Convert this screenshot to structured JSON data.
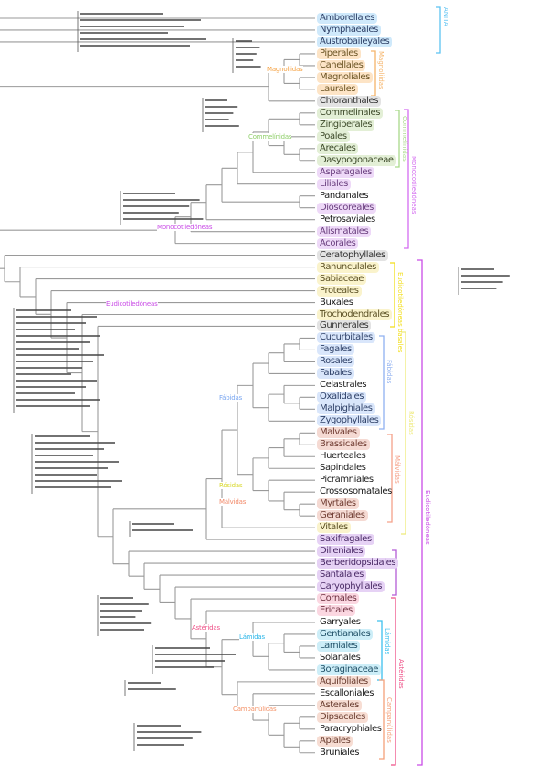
{
  "orders": [
    {
      "name": "Amborellales",
      "group": "anita"
    },
    {
      "name": "Nymphaeales",
      "group": "anita"
    },
    {
      "name": "Austrobaileyales",
      "group": "anita"
    },
    {
      "name": "Piperales",
      "group": "magno"
    },
    {
      "name": "Canellales",
      "group": "magno"
    },
    {
      "name": "Magnoliales",
      "group": "magno"
    },
    {
      "name": "Laurales",
      "group": "magno"
    },
    {
      "name": "Chloranthales",
      "group": "gray"
    },
    {
      "name": "Commelinales",
      "group": "green"
    },
    {
      "name": "Zingiberales",
      "group": "green"
    },
    {
      "name": "Poales",
      "group": "green"
    },
    {
      "name": "Arecales",
      "group": "green"
    },
    {
      "name": "Dasypogonaceae",
      "group": "green"
    },
    {
      "name": "Asparagales",
      "group": "purple"
    },
    {
      "name": "Liliales",
      "group": "purple"
    },
    {
      "name": "Pandanales",
      "group": "none"
    },
    {
      "name": "Dioscoreales",
      "group": "purple"
    },
    {
      "name": "Petrosaviales",
      "group": "none"
    },
    {
      "name": "Alismatales",
      "group": "purple"
    },
    {
      "name": "Acorales",
      "group": "purple"
    },
    {
      "name": "Ceratophyllales",
      "group": "gray"
    },
    {
      "name": "Ranunculales",
      "group": "yellow"
    },
    {
      "name": "Sabiaceae",
      "group": "yellow"
    },
    {
      "name": "Proteales",
      "group": "yellow"
    },
    {
      "name": "Buxales",
      "group": "none"
    },
    {
      "name": "Trochodendrales",
      "group": "yellow"
    },
    {
      "name": "Gunnerales",
      "group": "gray"
    },
    {
      "name": "Cucurbitales",
      "group": "blue"
    },
    {
      "name": "Fagales",
      "group": "blue"
    },
    {
      "name": "Rosales",
      "group": "blue"
    },
    {
      "name": "Fabales",
      "group": "blue"
    },
    {
      "name": "Celastrales",
      "group": "none"
    },
    {
      "name": "Oxalidales",
      "group": "blue"
    },
    {
      "name": "Malpighiales",
      "group": "blue"
    },
    {
      "name": "Zygophyllales",
      "group": "blue"
    },
    {
      "name": "Malvales",
      "group": "red"
    },
    {
      "name": "Brassicales",
      "group": "red"
    },
    {
      "name": "Huerteales",
      "group": "none"
    },
    {
      "name": "Sapindales",
      "group": "none"
    },
    {
      "name": "Picramniales",
      "group": "none"
    },
    {
      "name": "Crossosomatales",
      "group": "none"
    },
    {
      "name": "Myrtales",
      "group": "red"
    },
    {
      "name": "Geraniales",
      "group": "red"
    },
    {
      "name": "Vitales",
      "group": "yellow"
    },
    {
      "name": "Saxifragales",
      "group": "violet"
    },
    {
      "name": "Dilleniales",
      "group": "violet"
    },
    {
      "name": "Berberidopsidales",
      "group": "violet"
    },
    {
      "name": "Santalales",
      "group": "violet"
    },
    {
      "name": "Caryophyllales",
      "group": "violet"
    },
    {
      "name": "Cornales",
      "group": "pink"
    },
    {
      "name": "Ericales",
      "group": "pink"
    },
    {
      "name": "Garryales",
      "group": "none"
    },
    {
      "name": "Gentianales",
      "group": "cyan"
    },
    {
      "name": "Lamiales",
      "group": "cyan"
    },
    {
      "name": "Solanales",
      "group": "none"
    },
    {
      "name": "Boraginaceae",
      "group": "cyan"
    },
    {
      "name": "Aquifoliales",
      "group": "brown"
    },
    {
      "name": "Escalloniales",
      "group": "none"
    },
    {
      "name": "Asterales",
      "group": "brown"
    },
    {
      "name": "Dipsacales",
      "group": "brown"
    },
    {
      "name": "Paracryphiales",
      "group": "none"
    },
    {
      "name": "Apiales",
      "group": "brown"
    },
    {
      "name": "Bruniales",
      "group": "none"
    }
  ],
  "tree": [
    0,
    [
      1,
      [
        2,
        [
          [
            [
              [
                3,
                4
              ],
              [
                5,
                6
              ]
            ],
            7
          ],
          [
            [
              19,
              [
                18,
                [
                  17,
                  [
                    [
                      15,
                      16
                    ],
                    [
                      14,
                      [
                        13,
                        [
                          [
                            8,
                            9
                          ],
                          [
                            10,
                            [
                              11,
                              12
                            ]
                          ]
                        ]
                      ]
                    ]
                  ]
                ]
              ]
            ],
            [
              20,
              [
                21,
                [
                  22,
                  [
                    23,
                    [
                      24,
                      [
                        25,
                        [
                          26,
                          [
                            [
                              44,
                              [
                                43,
                                [
                                  [
                                    [
                                      [
                                        [
                                          27,
                                          28
                                        ],
                                        29
                                      ],
                                      30
                                    ],
                                    [
                                      [
                                        31,
                                        [
                                          32,
                                          33
                                        ]
                                      ],
                                      34
                                    ]
                                  ],
                                  [
                                    [
                                      [
                                        [
                                          35,
                                          36
                                        ],
                                        37
                                      ],
                                      38
                                    ],
                                    [
                                      39,
                                      [
                                        40,
                                        [
                                          41,
                                          42
                                        ]
                                      ]
                                    ]
                                  ]
                                ]
                              ]
                            ],
                            [
                              45,
                              [
                                46,
                                [
                                  47,
                                  [
                                    48,
                                    [
                                      49,
                                      [
                                        50,
                                        [
                                          [
                                            51,
                                            [
                                              [
                                                52,
                                                [
                                                  53,
                                                  54
                                                ]
                                              ],
                                              55
                                            ]
                                          ],
                                          [
                                            56,
                                            [
                                              57,
                                              [
                                                58,
                                                [
                                                  [
                                                    59,
                                                    60
                                                  ],
                                                  [
                                                    61,
                                                    62
                                                  ]
                                                ]
                                              ]
                                            ]
                                          ]
                                        ]
                                      ]
                                    ]
                                  ]
                                ]
                              ]
                            ]
                          ]
                        ]
                      ]
                    ]
                  ]
                ]
              ]
            ]
          ]
        ]
      ]
    ]
  ],
  "groups": {
    "anita": {
      "highlight": "#cfe9fb",
      "text": "#2d3f66"
    },
    "magno": {
      "highlight": "#fde4c6",
      "text": "#6b5424"
    },
    "gray": {
      "highlight": "#e3e3e3",
      "text": "#333333"
    },
    "green": {
      "highlight": "#e3efd6",
      "text": "#3d4a2a"
    },
    "purple": {
      "highlight": "#eed9f8",
      "text": "#6a3f7e"
    },
    "none": {
      "highlight": "transparent",
      "text": "#1a1a1a"
    },
    "yellow": {
      "highlight": "#faf3cc",
      "text": "#5b5024"
    },
    "blue": {
      "highlight": "#d9e6fb",
      "text": "#2d3f66"
    },
    "red": {
      "highlight": "#f5dad3",
      "text": "#6e3a30"
    },
    "violet": {
      "highlight": "#e6d2f5",
      "text": "#4a2a66"
    },
    "pink": {
      "highlight": "#fbd7e1",
      "text": "#6e3040"
    },
    "cyan": {
      "highlight": "#cdeef8",
      "text": "#1f4f66"
    },
    "brown": {
      "highlight": "#f7ddd3",
      "text": "#6a3d30"
    }
  },
  "clade_labels": [
    {
      "text": "Magnoliidas",
      "color": "#f5a142"
    },
    {
      "text": "Commelínidas",
      "color": "#8fcf6a"
    },
    {
      "text": "Monocotiledóneas",
      "color": "#c94ce6"
    },
    {
      "text": "Eudicotiledóneas",
      "color": "#c94ce6"
    },
    {
      "text": "Fábidas",
      "color": "#7aa6f0"
    },
    {
      "text": "Rósidas",
      "color": "#d8d82a"
    },
    {
      "text": "Málvidas",
      "color": "#f28a6a"
    },
    {
      "text": "Astéridas",
      "color": "#ee4f86"
    },
    {
      "text": "Lámidas",
      "color": "#2bb6e8"
    },
    {
      "text": "Campanúlidas",
      "color": "#f4946a"
    }
  ],
  "brackets": [
    {
      "label": "ANITA",
      "color": "#5cc2f2"
    },
    {
      "label": "Magnoliidas",
      "color": "#f5b46a"
    },
    {
      "label": "Commelínidas",
      "color": "#a9d98a"
    },
    {
      "label": "Monocotiledóneas",
      "color": "#d46cf0"
    },
    {
      "label": "Eudicotiledóneas basales",
      "color": "#f2de1a"
    },
    {
      "label": "Eudicotiledóneas",
      "color": "#c94ce6"
    },
    {
      "label": "Fábidas",
      "color": "#8fb0f0"
    },
    {
      "label": "Rósidas",
      "color": "#eeea7a"
    },
    {
      "label": "Málvidas",
      "color": "#f5a28a"
    },
    {
      "label": "",
      "color": "#b35cd6"
    },
    {
      "label": "Astéridas",
      "color": "#ee4f86"
    },
    {
      "label": "Lámidas",
      "color": "#3cc0ee"
    },
    {
      "label": "Campanúlidas",
      "color": "#f5a07a"
    }
  ]
}
